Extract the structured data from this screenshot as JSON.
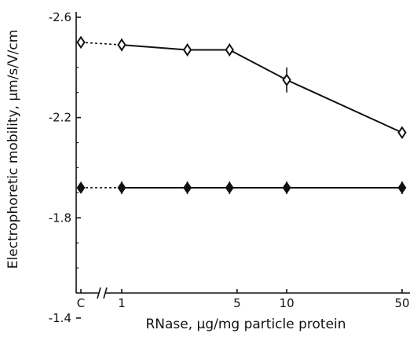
{
  "chart_data": {
    "type": "line",
    "title": "",
    "xlabel": "RNase, µg/mg particle protein",
    "ylabel": "Electrophoretic mobility, µm/s/V/cm",
    "x_scale": "log",
    "x_axis_break": "between C and 1",
    "categories": [
      "C",
      "1",
      "5",
      "10",
      "50"
    ],
    "y_ticks": [
      "-2.6",
      "-2.2",
      "-1.8",
      "-1.4"
    ],
    "ylim": [
      -2.6,
      -1.5
    ],
    "y_direction": "more negative upward",
    "grid": false,
    "legend": "none",
    "series": [
      {
        "marker": "open-diamond",
        "control": {
          "x": "C",
          "y": -2.5
        },
        "points": [
          {
            "x": 1,
            "y": -2.49
          },
          {
            "x": 2.5,
            "y": -2.47
          },
          {
            "x": 4.5,
            "y": -2.47
          },
          {
            "x": 10,
            "y": -2.35,
            "err": 0.05
          },
          {
            "x": 50,
            "y": -2.14,
            "err": 0.02
          }
        ]
      },
      {
        "marker": "filled-diamond",
        "control": {
          "x": "C",
          "y": -1.92
        },
        "points": [
          {
            "x": 1,
            "y": -1.92
          },
          {
            "x": 2.5,
            "y": -1.92
          },
          {
            "x": 4.5,
            "y": -1.92
          },
          {
            "x": 10,
            "y": -1.92
          },
          {
            "x": 50,
            "y": -1.92
          }
        ]
      }
    ]
  }
}
